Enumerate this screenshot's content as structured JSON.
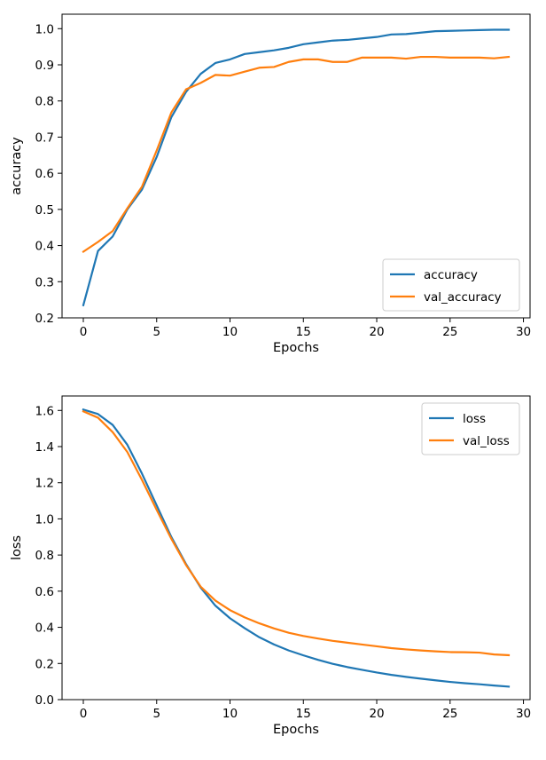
{
  "chart_data": [
    {
      "type": "line",
      "xlabel": "Epochs",
      "ylabel": "accuracy",
      "xlim": [
        -1.45,
        30.45
      ],
      "ylim": [
        0.2,
        1.04
      ],
      "xticks": [
        0,
        5,
        10,
        15,
        20,
        25,
        30
      ],
      "yticks": [
        0.2,
        0.3,
        0.4,
        0.5,
        0.6,
        0.7,
        0.8,
        0.9,
        1.0
      ],
      "xtick_labels": [
        "0",
        "5",
        "10",
        "15",
        "20",
        "25",
        "30"
      ],
      "ytick_labels": [
        "0.2",
        "0.3",
        "0.4",
        "0.5",
        "0.6",
        "0.7",
        "0.8",
        "0.9",
        "1.0"
      ],
      "legend": "lower-right",
      "grid": false,
      "x": [
        0,
        1,
        2,
        3,
        4,
        5,
        6,
        7,
        8,
        9,
        10,
        11,
        12,
        13,
        14,
        15,
        16,
        17,
        18,
        19,
        20,
        21,
        22,
        23,
        24,
        25,
        26,
        27,
        28,
        29
      ],
      "series": [
        {
          "name": "accuracy",
          "color": "#1f77b4",
          "values": [
            0.235,
            0.385,
            0.425,
            0.5,
            0.555,
            0.645,
            0.755,
            0.825,
            0.875,
            0.905,
            0.915,
            0.93,
            0.935,
            0.94,
            0.947,
            0.957,
            0.962,
            0.967,
            0.969,
            0.973,
            0.977,
            0.984,
            0.985,
            0.989,
            0.993,
            0.994,
            0.995,
            0.996,
            0.997,
            0.997
          ]
        },
        {
          "name": "val_accuracy",
          "color": "#ff7f0e",
          "values": [
            0.383,
            0.41,
            0.44,
            0.503,
            0.563,
            0.663,
            0.768,
            0.832,
            0.85,
            0.872,
            0.87,
            0.881,
            0.892,
            0.894,
            0.908,
            0.915,
            0.915,
            0.908,
            0.908,
            0.92,
            0.92,
            0.92,
            0.917,
            0.922,
            0.922,
            0.92,
            0.92,
            0.92,
            0.918,
            0.922
          ]
        }
      ]
    },
    {
      "type": "line",
      "xlabel": "Epochs",
      "ylabel": "loss",
      "xlim": [
        -1.45,
        30.45
      ],
      "ylim": [
        0.0,
        1.68
      ],
      "xticks": [
        0,
        5,
        10,
        15,
        20,
        25,
        30
      ],
      "yticks": [
        0.0,
        0.2,
        0.4,
        0.6,
        0.8,
        1.0,
        1.2,
        1.4,
        1.6
      ],
      "xtick_labels": [
        "0",
        "5",
        "10",
        "15",
        "20",
        "25",
        "30"
      ],
      "ytick_labels": [
        "0.0",
        "0.2",
        "0.4",
        "0.6",
        "0.8",
        "1.0",
        "1.2",
        "1.4",
        "1.6"
      ],
      "legend": "top-right",
      "grid": false,
      "x": [
        0,
        1,
        2,
        3,
        4,
        5,
        6,
        7,
        8,
        9,
        10,
        11,
        12,
        13,
        14,
        15,
        16,
        17,
        18,
        19,
        20,
        21,
        22,
        23,
        24,
        25,
        26,
        27,
        28,
        29
      ],
      "series": [
        {
          "name": "loss",
          "color": "#1f77b4",
          "values": [
            1.605,
            1.58,
            1.52,
            1.41,
            1.25,
            1.075,
            0.9,
            0.75,
            0.62,
            0.52,
            0.45,
            0.395,
            0.345,
            0.305,
            0.272,
            0.245,
            0.22,
            0.198,
            0.18,
            0.165,
            0.15,
            0.137,
            0.126,
            0.116,
            0.107,
            0.098,
            0.091,
            0.085,
            0.078,
            0.072
          ]
        },
        {
          "name": "val_loss",
          "color": "#ff7f0e",
          "values": [
            1.595,
            1.56,
            1.48,
            1.37,
            1.215,
            1.05,
            0.89,
            0.745,
            0.625,
            0.548,
            0.495,
            0.455,
            0.422,
            0.394,
            0.37,
            0.352,
            0.338,
            0.325,
            0.315,
            0.305,
            0.295,
            0.285,
            0.278,
            0.272,
            0.267,
            0.263,
            0.262,
            0.26,
            0.25,
            0.246
          ]
        }
      ]
    }
  ]
}
